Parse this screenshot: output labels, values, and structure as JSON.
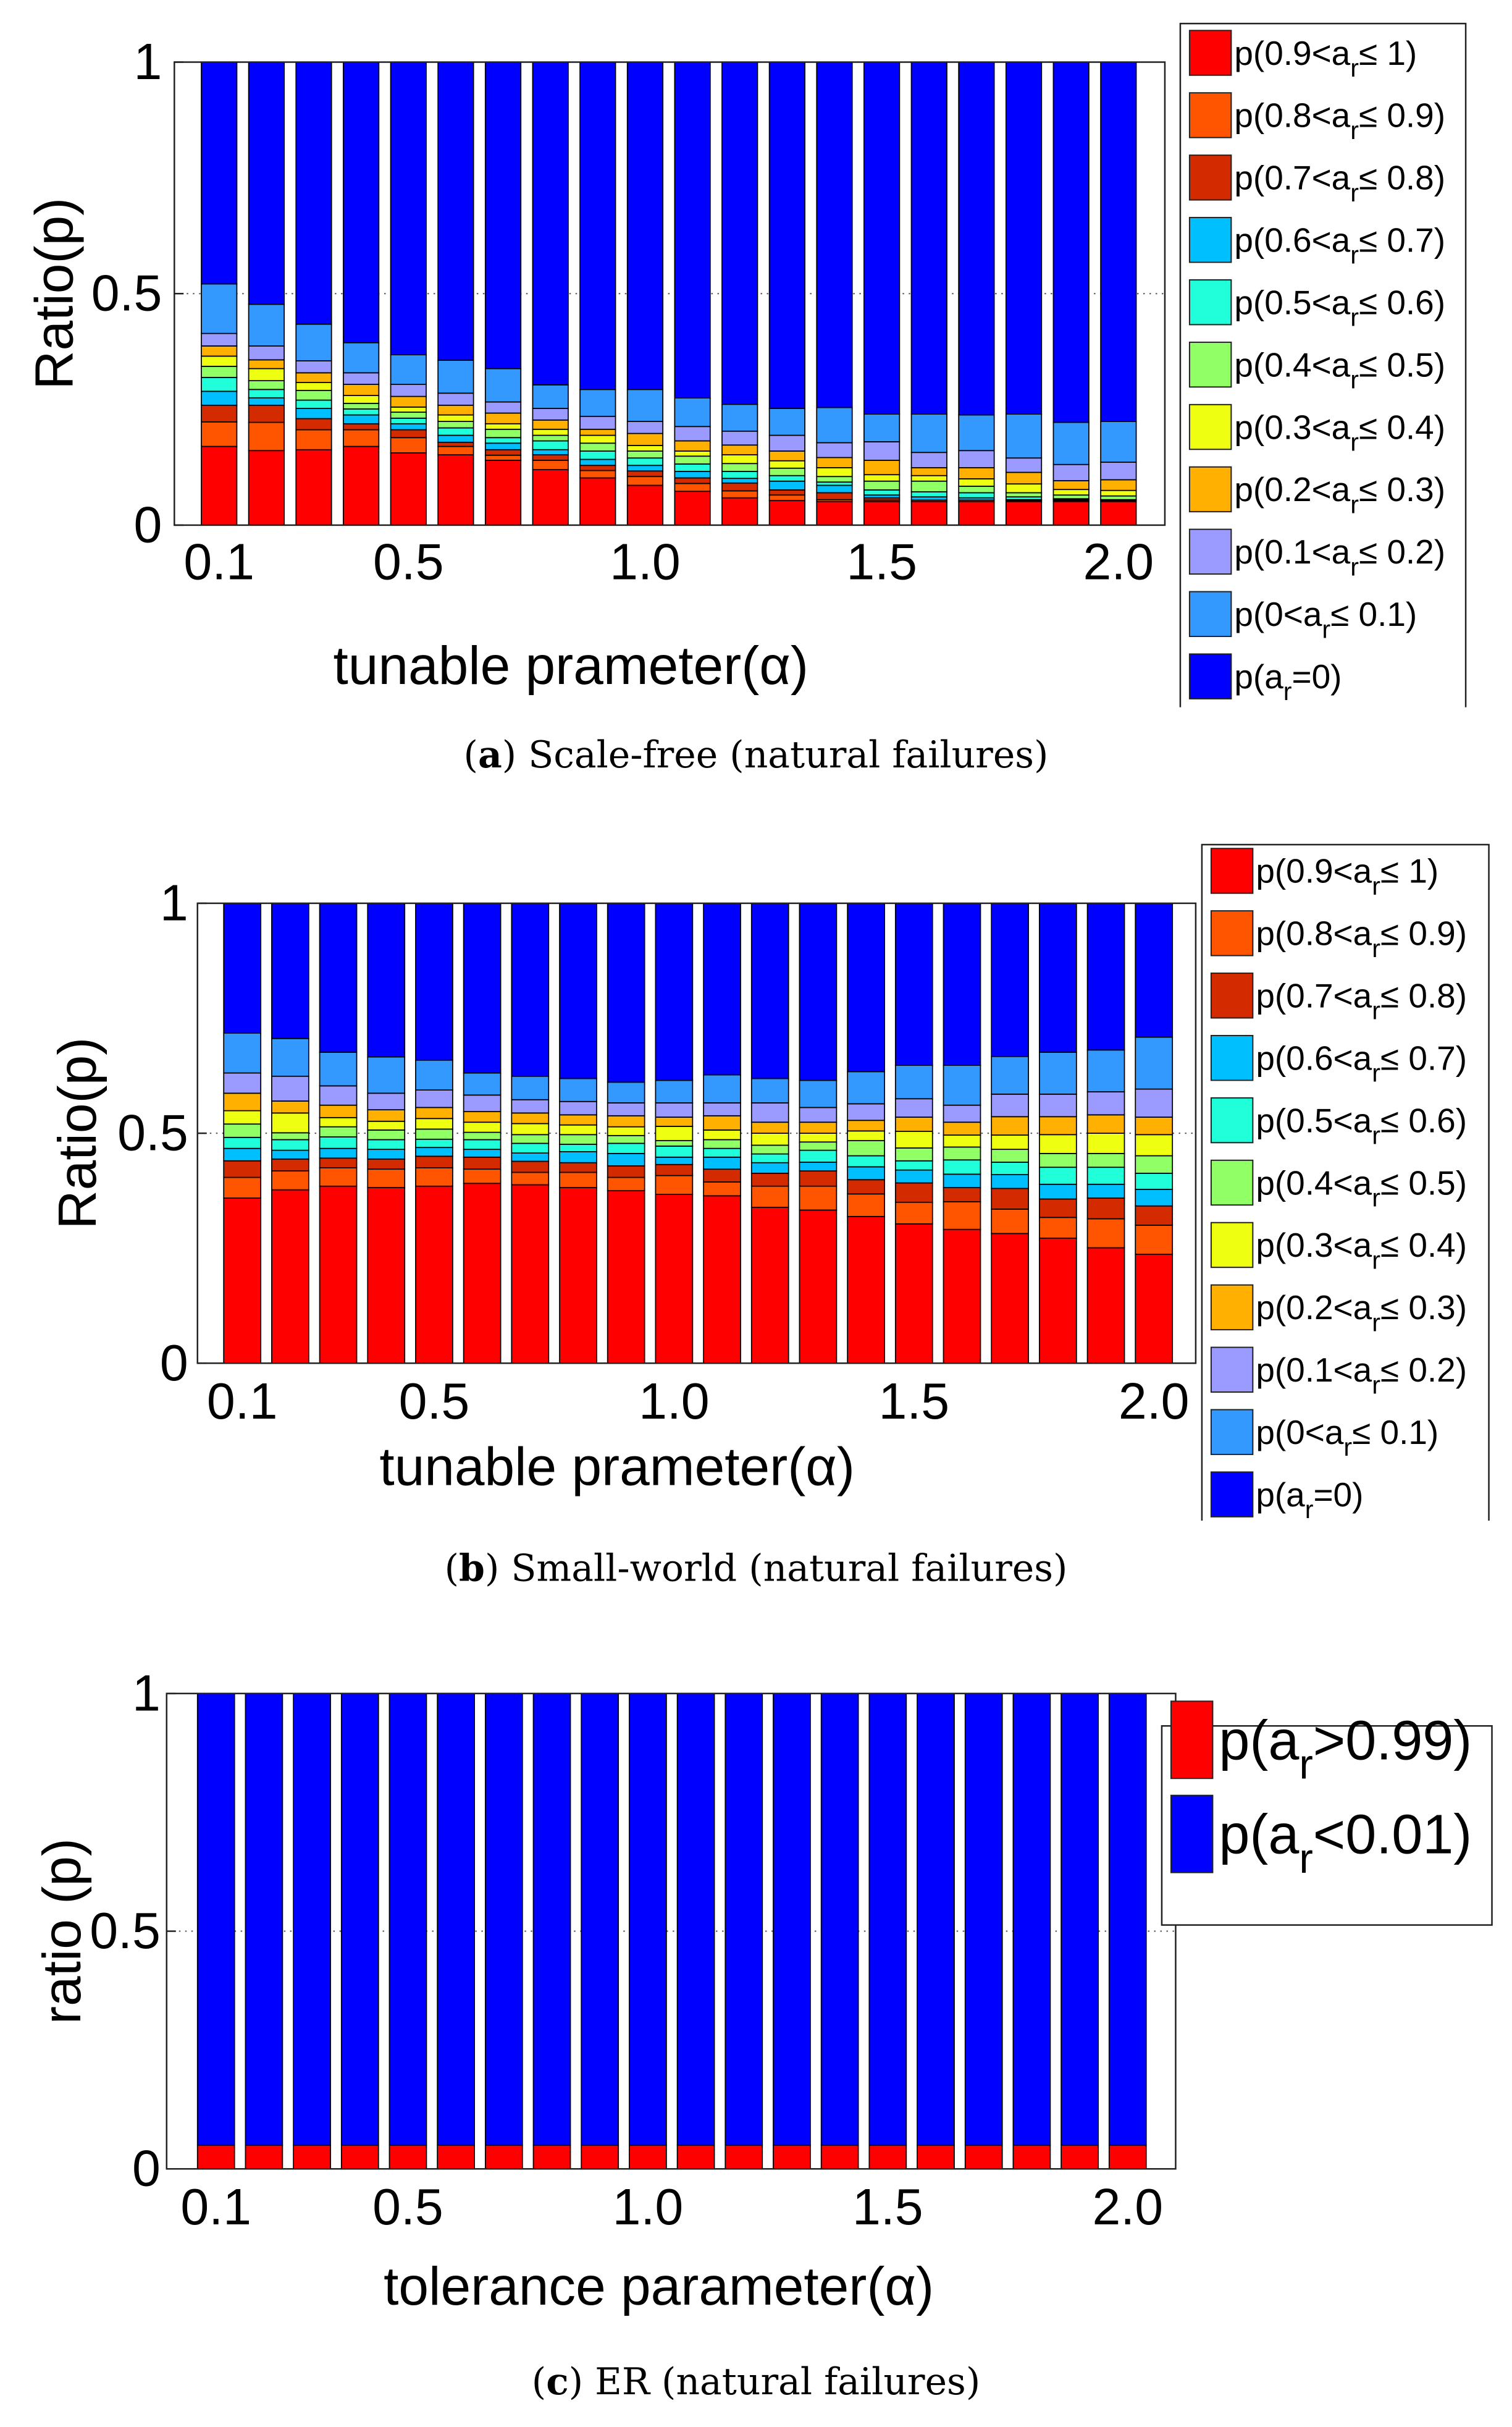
{
  "chart_data": [
    {
      "type": "bar",
      "stacked": true,
      "value_encoding": "cumulative stack top of each series (data units)",
      "caption": {
        "letter": "a",
        "text": "Scale-free (natural failures)"
      },
      "xlabel": "tunable prameter(α)",
      "ylabel": "Ratio(p)",
      "ylim": [
        0,
        1
      ],
      "yticks": [
        "0",
        "0.5",
        "1"
      ],
      "xticks": [
        "0.1",
        "0.5",
        "1.0",
        "1.5",
        "2.0"
      ],
      "x": [
        0.1,
        0.2,
        0.3,
        0.4,
        0.5,
        0.6,
        0.7,
        0.8,
        0.9,
        1.0,
        1.1,
        1.2,
        1.3,
        1.4,
        1.5,
        1.6,
        1.7,
        1.8,
        1.9,
        2.0
      ],
      "legend_position": "outside-right",
      "series": [
        {
          "name": {
            "pre": "p(0.9<a",
            "sub": "r",
            "post": "≤ 1)"
          },
          "color": "#ff0000",
          "cumulative": [
            0.17,
            0.161,
            0.163,
            0.17,
            0.156,
            0.152,
            0.14,
            0.12,
            0.102,
            0.086,
            0.073,
            0.059,
            0.053,
            0.051,
            0.051,
            0.051,
            0.051,
            0.051,
            0.051,
            0.051
          ]
        },
        {
          "name": {
            "pre": "p(0.8<a",
            "sub": "r",
            "post": "≤ 0.9)"
          },
          "color": "#ff5500",
          "cumulative": [
            0.223,
            0.222,
            0.206,
            0.206,
            0.189,
            0.17,
            0.151,
            0.14,
            0.118,
            0.105,
            0.09,
            0.074,
            0.065,
            0.055,
            0.054,
            0.054,
            0.054,
            0.053,
            0.053,
            0.053
          ]
        },
        {
          "name": {
            "pre": "p(0.7<a",
            "sub": "r",
            "post": "≤ 0.8)"
          },
          "color": "#d42a00",
          "cumulative": [
            0.259,
            0.259,
            0.23,
            0.219,
            0.206,
            0.179,
            0.163,
            0.152,
            0.129,
            0.117,
            0.102,
            0.091,
            0.076,
            0.07,
            0.059,
            0.054,
            0.054,
            0.053,
            0.053,
            0.053
          ]
        },
        {
          "name": {
            "pre": "p(0.6<a",
            "sub": "r",
            "post": "≤ 0.7)"
          },
          "color": "#00bfff",
          "cumulative": [
            0.289,
            0.275,
            0.252,
            0.238,
            0.219,
            0.194,
            0.177,
            0.163,
            0.142,
            0.129,
            0.116,
            0.101,
            0.095,
            0.086,
            0.065,
            0.061,
            0.059,
            0.055,
            0.055,
            0.054
          ]
        },
        {
          "name": {
            "pre": "p(0.5<a",
            "sub": "r",
            "post": "≤ 0.6)"
          },
          "color": "#20ffd9",
          "cumulative": [
            0.319,
            0.293,
            0.27,
            0.251,
            0.231,
            0.21,
            0.189,
            0.182,
            0.16,
            0.145,
            0.132,
            0.116,
            0.107,
            0.093,
            0.076,
            0.072,
            0.07,
            0.061,
            0.057,
            0.055
          ]
        },
        {
          "name": {
            "pre": "p(0.4<a",
            "sub": "r",
            "post": "≤ 0.5)"
          },
          "color": "#91ff66",
          "cumulative": [
            0.343,
            0.312,
            0.291,
            0.263,
            0.244,
            0.224,
            0.207,
            0.194,
            0.177,
            0.16,
            0.149,
            0.133,
            0.123,
            0.105,
            0.095,
            0.095,
            0.084,
            0.07,
            0.065,
            0.063
          ]
        },
        {
          "name": {
            "pre": "p(0.3<a",
            "sub": "r",
            "post": "≤ 0.4)"
          },
          "color": "#eeff11",
          "cumulative": [
            0.365,
            0.338,
            0.308,
            0.28,
            0.255,
            0.238,
            0.219,
            0.207,
            0.194,
            0.172,
            0.16,
            0.152,
            0.139,
            0.124,
            0.109,
            0.107,
            0.1,
            0.089,
            0.077,
            0.075
          ]
        },
        {
          "name": {
            "pre": "p(0.2<a",
            "sub": "r",
            "post": "≤ 0.3)"
          },
          "color": "#ffb000",
          "cumulative": [
            0.387,
            0.357,
            0.329,
            0.304,
            0.278,
            0.259,
            0.242,
            0.227,
            0.207,
            0.198,
            0.182,
            0.173,
            0.16,
            0.146,
            0.14,
            0.124,
            0.124,
            0.114,
            0.096,
            0.098
          ]
        },
        {
          "name": {
            "pre": "p(0.1<a",
            "sub": "r",
            "post": "≤ 0.2)"
          },
          "color": "#9b9bff",
          "cumulative": [
            0.414,
            0.387,
            0.355,
            0.329,
            0.304,
            0.285,
            0.266,
            0.252,
            0.235,
            0.224,
            0.213,
            0.203,
            0.194,
            0.178,
            0.18,
            0.157,
            0.161,
            0.145,
            0.131,
            0.136
          ]
        },
        {
          "name": {
            "pre": "p(0<a",
            "sub": "r",
            "post": "≤ 0.1)"
          },
          "color": "#3399ff",
          "cumulative": [
            0.521,
            0.477,
            0.434,
            0.394,
            0.368,
            0.356,
            0.338,
            0.303,
            0.293,
            0.293,
            0.275,
            0.261,
            0.252,
            0.254,
            0.24,
            0.24,
            0.238,
            0.24,
            0.222,
            0.224
          ]
        },
        {
          "name": {
            "pre": "p(a",
            "sub": "r",
            "post": "=0)"
          },
          "color": "#0000ff",
          "cumulative": [
            1,
            1,
            1,
            1,
            1,
            1,
            1,
            1,
            1,
            1,
            1,
            1,
            1,
            1,
            1,
            1,
            1,
            1,
            1,
            1
          ]
        }
      ]
    },
    {
      "type": "bar",
      "stacked": true,
      "value_encoding": "cumulative stack top of each series (data units)",
      "caption": {
        "letter": "b",
        "text": "Small-world (natural failures)"
      },
      "xlabel": "tunable prameter(α)",
      "ylabel": "Ratio(p)",
      "ylim": [
        0,
        1
      ],
      "yticks": [
        "0",
        "0.5",
        "1"
      ],
      "xticks": [
        "0.1",
        "0.5",
        "1.0",
        "1.5",
        "2.0"
      ],
      "x": [
        0.1,
        0.2,
        0.3,
        0.4,
        0.5,
        0.6,
        0.7,
        0.8,
        0.9,
        1.0,
        1.1,
        1.2,
        1.3,
        1.4,
        1.5,
        1.6,
        1.7,
        1.8,
        1.9,
        2.0
      ],
      "legend_position": "outside-right",
      "series": [
        {
          "name": {
            "pre": "p(0.9<a",
            "sub": "r",
            "post": "≤ 1)"
          },
          "color": "#ff0000",
          "cumulative": [
            0.359,
            0.377,
            0.385,
            0.382,
            0.385,
            0.391,
            0.388,
            0.382,
            0.375,
            0.367,
            0.364,
            0.339,
            0.333,
            0.319,
            0.303,
            0.291,
            0.282,
            0.272,
            0.251,
            0.237
          ]
        },
        {
          "name": {
            "pre": "p(0.8<a",
            "sub": "r",
            "post": "≤ 0.9)"
          },
          "color": "#ff5500",
          "cumulative": [
            0.404,
            0.418,
            0.425,
            0.422,
            0.425,
            0.422,
            0.415,
            0.415,
            0.404,
            0.408,
            0.394,
            0.385,
            0.385,
            0.368,
            0.35,
            0.351,
            0.335,
            0.317,
            0.314,
            0.3
          ]
        },
        {
          "name": {
            "pre": "p(0.7<a",
            "sub": "r",
            "post": "≤ 0.8)"
          },
          "color": "#d42a00",
          "cumulative": [
            0.44,
            0.444,
            0.446,
            0.444,
            0.45,
            0.448,
            0.439,
            0.436,
            0.429,
            0.432,
            0.422,
            0.413,
            0.418,
            0.399,
            0.392,
            0.382,
            0.38,
            0.357,
            0.359,
            0.342
          ]
        },
        {
          "name": {
            "pre": "p(0.6<a",
            "sub": "r",
            "post": "≤ 0.7)"
          },
          "color": "#00bfff",
          "cumulative": [
            0.467,
            0.463,
            0.467,
            0.465,
            0.469,
            0.465,
            0.457,
            0.46,
            0.456,
            0.448,
            0.448,
            0.436,
            0.437,
            0.427,
            0.42,
            0.411,
            0.41,
            0.389,
            0.389,
            0.378
          ]
        },
        {
          "name": {
            "pre": "p(0.5<a",
            "sub": "r",
            "post": "≤ 0.6)"
          },
          "color": "#20ffd9",
          "cumulative": [
            0.491,
            0.486,
            0.492,
            0.486,
            0.487,
            0.486,
            0.478,
            0.476,
            0.478,
            0.472,
            0.467,
            0.455,
            0.463,
            0.451,
            0.44,
            0.442,
            0.437,
            0.426,
            0.426,
            0.413
          ]
        },
        {
          "name": {
            "pre": "p(0.4<a",
            "sub": "r",
            "post": "≤ 0.5)"
          },
          "color": "#91ff66",
          "cumulative": [
            0.52,
            0.501,
            0.514,
            0.507,
            0.509,
            0.502,
            0.497,
            0.497,
            0.495,
            0.484,
            0.486,
            0.474,
            0.481,
            0.484,
            0.468,
            0.47,
            0.465,
            0.456,
            0.456,
            0.451
          ]
        },
        {
          "name": {
            "pre": "p(0.3<a",
            "sub": "r",
            "post": "≤ 0.4)"
          },
          "color": "#eeff11",
          "cumulative": [
            0.549,
            0.544,
            0.534,
            0.526,
            0.532,
            0.524,
            0.521,
            0.518,
            0.514,
            0.515,
            0.507,
            0.5,
            0.5,
            0.505,
            0.504,
            0.496,
            0.496,
            0.497,
            0.5,
            0.497
          ]
        },
        {
          "name": {
            "pre": "p(0.2<a",
            "sub": "r",
            "post": "≤ 0.3)"
          },
          "color": "#ffb000",
          "cumulative": [
            0.587,
            0.57,
            0.561,
            0.551,
            0.556,
            0.547,
            0.544,
            0.54,
            0.538,
            0.535,
            0.538,
            0.524,
            0.524,
            0.528,
            0.535,
            0.524,
            0.536,
            0.536,
            0.54,
            0.535
          ]
        },
        {
          "name": {
            "pre": "p(0.1<a",
            "sub": "r",
            "post": "≤ 0.2)"
          },
          "color": "#9b9bff",
          "cumulative": [
            0.631,
            0.624,
            0.603,
            0.587,
            0.594,
            0.583,
            0.573,
            0.569,
            0.566,
            0.566,
            0.566,
            0.566,
            0.556,
            0.564,
            0.575,
            0.561,
            0.585,
            0.585,
            0.59,
            0.596
          ]
        },
        {
          "name": {
            "pre": "p(0<a",
            "sub": "r",
            "post": "≤ 0.1)"
          },
          "color": "#3399ff",
          "cumulative": [
            0.718,
            0.706,
            0.676,
            0.666,
            0.659,
            0.631,
            0.624,
            0.619,
            0.611,
            0.615,
            0.627,
            0.619,
            0.615,
            0.634,
            0.648,
            0.648,
            0.667,
            0.676,
            0.681,
            0.709
          ]
        },
        {
          "name": {
            "pre": "p(a",
            "sub": "r",
            "post": "=0)"
          },
          "color": "#0000ff",
          "cumulative": [
            1,
            1,
            1,
            1,
            1,
            1,
            1,
            1,
            1,
            1,
            1,
            1,
            1,
            1,
            1,
            1,
            1,
            1,
            1,
            1
          ]
        }
      ]
    },
    {
      "type": "bar",
      "stacked": true,
      "value_encoding": "cumulative stack top of each series (data units)",
      "caption": {
        "letter": "c",
        "text": "ER (natural failures)"
      },
      "xlabel": "tolerance parameter(α)",
      "ylabel": "ratio (p)",
      "ylim": [
        0,
        1
      ],
      "yticks": [
        "0",
        "0.5",
        "1"
      ],
      "xticks": [
        "0.1",
        "0.5",
        "1.0",
        "1.5",
        "2.0"
      ],
      "x": [
        0.1,
        0.2,
        0.3,
        0.4,
        0.5,
        0.6,
        0.7,
        0.8,
        0.9,
        1.0,
        1.1,
        1.2,
        1.3,
        1.4,
        1.5,
        1.6,
        1.7,
        1.8,
        1.9,
        2.0
      ],
      "legend_position": "outside-right",
      "series": [
        {
          "name": {
            "pre": "p(a",
            "sub": "r",
            "post": ">0.99)"
          },
          "color": "#ff0000",
          "cumulative": [
            0.05,
            0.05,
            0.05,
            0.05,
            0.05,
            0.05,
            0.05,
            0.05,
            0.05,
            0.05,
            0.05,
            0.05,
            0.05,
            0.05,
            0.05,
            0.05,
            0.05,
            0.05,
            0.05,
            0.05
          ]
        },
        {
          "name": {
            "pre": "p(a",
            "sub": "r",
            "post": "<0.01)"
          },
          "color": "#0000ff",
          "cumulative": [
            1,
            1,
            1,
            1,
            1,
            1,
            1,
            1,
            1,
            1,
            1,
            1,
            1,
            1,
            1,
            1,
            1,
            1,
            1,
            1
          ]
        }
      ]
    }
  ]
}
